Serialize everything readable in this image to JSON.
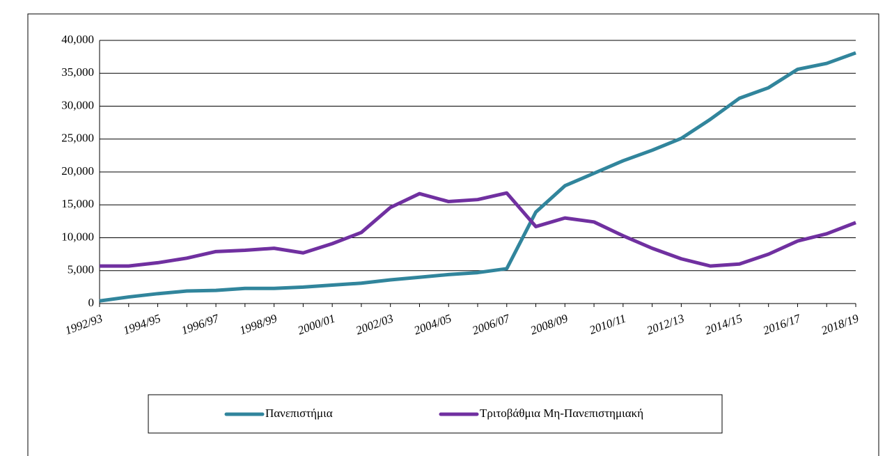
{
  "chart_data": {
    "type": "line",
    "categories": [
      "1992/93",
      null,
      "1994/95",
      null,
      "1996/97",
      null,
      "1998/99",
      null,
      "2000/01",
      null,
      "2002/03",
      null,
      "2004/05",
      null,
      "2006/07",
      null,
      "2008/09",
      null,
      "2010/11",
      null,
      "2012/13",
      null,
      "2014/15",
      null,
      "2016/17",
      null,
      "2018/19"
    ],
    "series": [
      {
        "name": "Πανεπιστήμια",
        "color": "#31859c",
        "values": [
          400,
          1000,
          1500,
          1900,
          2000,
          2300,
          2300,
          2500,
          2800,
          3100,
          3600,
          4000,
          4400,
          4700,
          5300,
          13900,
          17900,
          19800,
          21700,
          23300,
          25100,
          28000,
          31200,
          32800,
          35600,
          36500,
          38100
        ]
      },
      {
        "name": "Τριτοβάθμια Μη-Πανεπιστημιακή",
        "color": "#7030a0",
        "values": [
          5700,
          5700,
          6200,
          6900,
          7900,
          8100,
          8400,
          7700,
          9100,
          10800,
          14600,
          16700,
          15500,
          15800,
          16800,
          11700,
          13000,
          12400,
          10300,
          8400,
          6800,
          5700,
          6000,
          7500,
          9500,
          10600,
          12300
        ]
      }
    ],
    "ylim": [
      0,
      40000
    ],
    "yticks": [
      0,
      {
        "value": 5000,
        "label": "5,000"
      },
      {
        "value": 10000,
        "label": "10,000"
      },
      {
        "value": 15000,
        "label": "15,000"
      },
      {
        "value": 20000,
        "label": "20,000"
      },
      {
        "value": 25000,
        "label": "25,000"
      },
      {
        "value": 30000,
        "label": "30,000"
      },
      {
        "value": 35000,
        "label": "35,000"
      },
      {
        "value": 40000,
        "label": "40,000"
      }
    ],
    "grid": true
  }
}
